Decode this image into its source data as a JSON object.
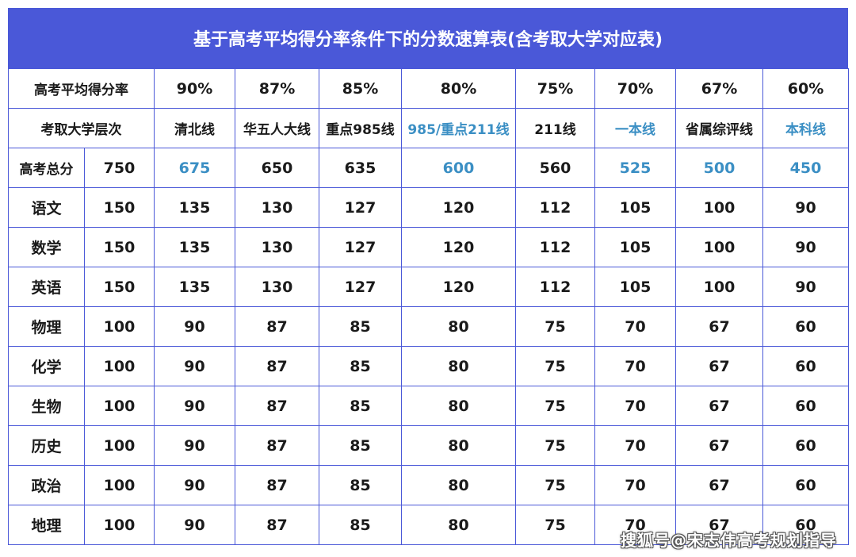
{
  "title": "基于高考平均得分率条件下的分数速算表(含考取大学对应表)",
  "header": {
    "rate_label": "高考平均得分率",
    "rates": [
      "90%",
      "87%",
      "85%",
      "80%",
      "75%",
      "70%",
      "67%",
      "60%"
    ],
    "tier_label": "考取大学层次",
    "tiers": [
      "清北线",
      "华五人大线",
      "重点985线",
      "985/重点211线",
      "211线",
      "一本线",
      "省属综评线",
      "本科线"
    ]
  },
  "highlight_color": "#3b8fc4",
  "rows": [
    {
      "subject": "高考总分",
      "full": "750",
      "values": [
        "675",
        "650",
        "635",
        "600",
        "560",
        "525",
        "500",
        "450"
      ]
    },
    {
      "subject": "语文",
      "full": "150",
      "values": [
        "135",
        "130",
        "127",
        "120",
        "112",
        "105",
        "100",
        "90"
      ]
    },
    {
      "subject": "数学",
      "full": "150",
      "values": [
        "135",
        "130",
        "127",
        "120",
        "112",
        "105",
        "100",
        "90"
      ]
    },
    {
      "subject": "英语",
      "full": "150",
      "values": [
        "135",
        "130",
        "127",
        "120",
        "112",
        "105",
        "100",
        "90"
      ]
    },
    {
      "subject": "物理",
      "full": "100",
      "values": [
        "90",
        "87",
        "85",
        "80",
        "75",
        "70",
        "67",
        "60"
      ]
    },
    {
      "subject": "化学",
      "full": "100",
      "values": [
        "90",
        "87",
        "85",
        "80",
        "75",
        "70",
        "67",
        "60"
      ]
    },
    {
      "subject": "生物",
      "full": "100",
      "values": [
        "90",
        "87",
        "85",
        "80",
        "75",
        "70",
        "67",
        "60"
      ]
    },
    {
      "subject": "历史",
      "full": "100",
      "values": [
        "90",
        "87",
        "85",
        "80",
        "75",
        "70",
        "67",
        "60"
      ]
    },
    {
      "subject": "政治",
      "full": "100",
      "values": [
        "90",
        "87",
        "85",
        "80",
        "75",
        "70",
        "67",
        "60"
      ]
    },
    {
      "subject": "地理",
      "full": "100",
      "values": [
        "90",
        "87",
        "85",
        "80",
        "75",
        "70",
        "67",
        "60"
      ]
    }
  ],
  "watermark": "搜狐号@宋志伟高考规划指导"
}
